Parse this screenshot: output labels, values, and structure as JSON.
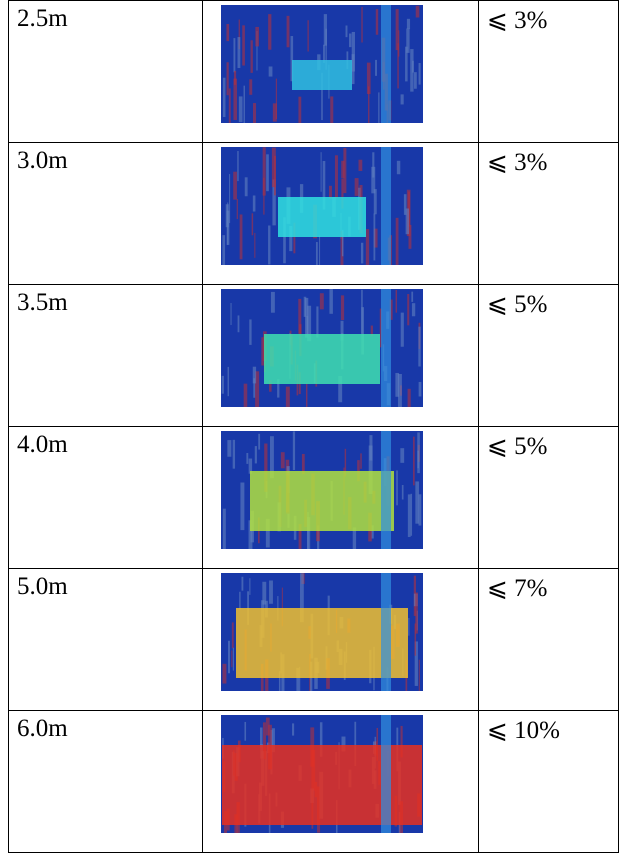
{
  "table": {
    "rows": [
      [
        "2.5m",
        "⩽ 3%"
      ],
      [
        "3.0m",
        "⩽ 3%"
      ],
      [
        "3.5m",
        "⩽ 5%"
      ],
      [
        "4.0m",
        "⩽ 5%"
      ],
      [
        "5.0m",
        "⩽ 7%"
      ],
      [
        "6.0m",
        "⩽ 10%"
      ]
    ]
  }
}
